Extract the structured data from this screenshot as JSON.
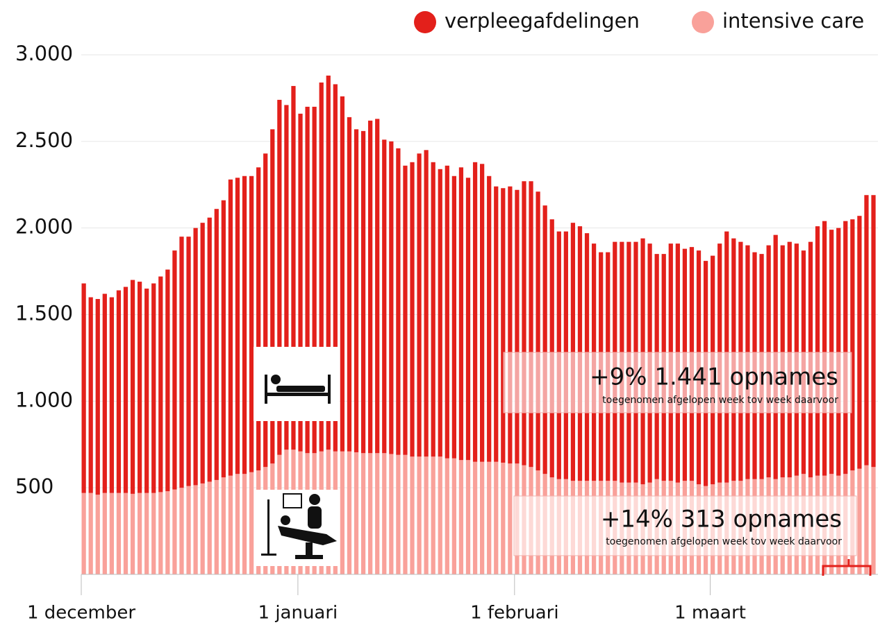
{
  "chart_data": {
    "type": "bar",
    "stacked": true,
    "legend": "top-right",
    "categories": [
      "1 december",
      null,
      null,
      null,
      null,
      null,
      null,
      null,
      null,
      null,
      null,
      null,
      null,
      null,
      null,
      null,
      null,
      null,
      null,
      null,
      null,
      null,
      null,
      null,
      null,
      null,
      null,
      null,
      null,
      null,
      null,
      "1 januari",
      null,
      null,
      null,
      null,
      null,
      null,
      null,
      null,
      null,
      null,
      null,
      null,
      null,
      null,
      null,
      null,
      null,
      null,
      null,
      null,
      null,
      null,
      null,
      null,
      null,
      null,
      null,
      null,
      null,
      null,
      "1 februari",
      null,
      null,
      null,
      null,
      null,
      null,
      null,
      null,
      null,
      null,
      null,
      null,
      null,
      null,
      null,
      null,
      null,
      null,
      null,
      null,
      null,
      null,
      null,
      null,
      null,
      null,
      null,
      "1 maart",
      null,
      null,
      null,
      null,
      null,
      null,
      null,
      null,
      null,
      null,
      null,
      null,
      null,
      null,
      null,
      null,
      null,
      null,
      null,
      null,
      null,
      null,
      null
    ],
    "series": [
      {
        "name": "verpleegafdelingen",
        "color": "#e3201b",
        "values": [
          1210,
          1130,
          1130,
          1150,
          1130,
          1170,
          1190,
          1235,
          1220,
          1180,
          1210,
          1245,
          1280,
          1380,
          1450,
          1440,
          1485,
          1505,
          1525,
          1565,
          1600,
          1710,
          1710,
          1720,
          1710,
          1750,
          1810,
          1930,
          2050,
          1990,
          2100,
          1950,
          2000,
          2000,
          2130,
          2160,
          2120,
          2050,
          1930,
          1865,
          1860,
          1920,
          1930,
          1810,
          1805,
          1770,
          1670,
          1700,
          1750,
          1770,
          1700,
          1660,
          1690,
          1630,
          1690,
          1630,
          1730,
          1720,
          1650,
          1590,
          1585,
          1600,
          1580,
          1640,
          1650,
          1610,
          1550,
          1490,
          1430,
          1430,
          1490,
          1470,
          1430,
          1370,
          1320,
          1320,
          1380,
          1390,
          1390,
          1390,
          1420,
          1380,
          1300,
          1310,
          1370,
          1380,
          1340,
          1350,
          1350,
          1300,
          1320,
          1380,
          1450,
          1400,
          1380,
          1350,
          1310,
          1300,
          1340,
          1410,
          1340,
          1360,
          1340,
          1290,
          1360,
          1440,
          1470,
          1410,
          1430,
          1460,
          1450,
          1460,
          1560,
          1570
        ]
      },
      {
        "name": "intensive care",
        "color": "#f9a19a",
        "values": [
          470,
          470,
          460,
          470,
          470,
          470,
          470,
          465,
          470,
          470,
          470,
          475,
          480,
          490,
          500,
          510,
          515,
          525,
          535,
          545,
          560,
          570,
          580,
          580,
          590,
          600,
          620,
          640,
          690,
          720,
          720,
          710,
          700,
          700,
          710,
          720,
          710,
          710,
          710,
          705,
          700,
          700,
          700,
          700,
          695,
          690,
          690,
          680,
          680,
          680,
          680,
          680,
          670,
          670,
          660,
          660,
          650,
          650,
          650,
          650,
          645,
          640,
          640,
          630,
          620,
          600,
          580,
          560,
          550,
          550,
          540,
          540,
          540,
          540,
          540,
          540,
          540,
          530,
          530,
          530,
          520,
          530,
          550,
          540,
          540,
          530,
          540,
          540,
          520,
          510,
          520,
          530,
          530,
          540,
          540,
          550,
          550,
          550,
          560,
          550,
          560,
          560,
          570,
          580,
          560,
          570,
          570,
          580,
          570,
          580,
          600,
          610,
          630,
          620
        ]
      }
    ],
    "ylim": [
      0,
      3000
    ],
    "yticks": [
      500,
      {
        "value": 1000,
        "label": "1.000"
      },
      {
        "value": 1500,
        "label": "1.500"
      },
      {
        "value": 2000,
        "label": "2.000"
      },
      {
        "value": 2500,
        "label": "2.500"
      },
      {
        "value": 3000,
        "label": "3.000"
      }
    ],
    "grid": true,
    "annotations": [
      {
        "text": "+9% 1.441 opnames",
        "note": "toegenomen afgelopen week tov week daarvoor"
      },
      {
        "text": "+14% 313 opnames",
        "note": "toegenomen afgelopen week tov week daarvoor"
      }
    ]
  }
}
